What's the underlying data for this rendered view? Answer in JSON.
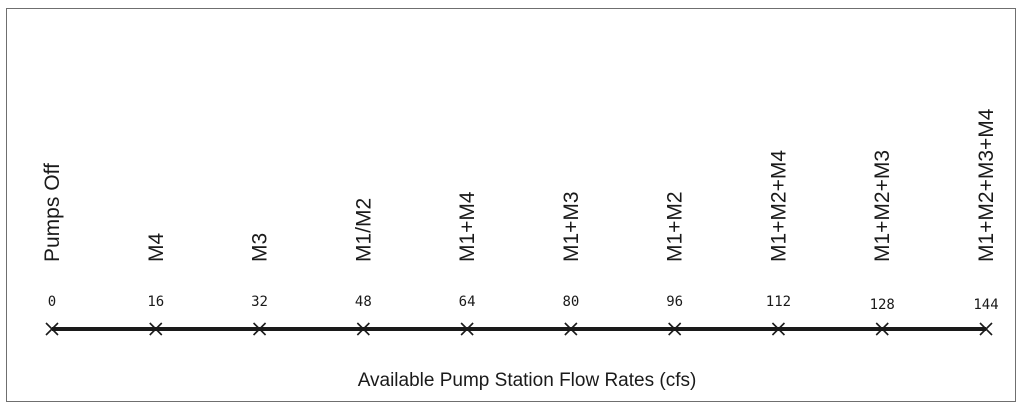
{
  "chart_data": {
    "type": "number-line",
    "title": "",
    "xlabel": "Available Pump Station Flow Rates (cfs)",
    "xlim": [
      0,
      144
    ],
    "points": [
      {
        "value": 0,
        "tick_label": "0",
        "combination": "Pumps Off"
      },
      {
        "value": 16,
        "tick_label": "16",
        "combination": "M4"
      },
      {
        "value": 32,
        "tick_label": "32",
        "combination": "M3"
      },
      {
        "value": 48,
        "tick_label": "48",
        "combination": "M1/M2"
      },
      {
        "value": 64,
        "tick_label": "64",
        "combination": "M1+M4"
      },
      {
        "value": 80,
        "tick_label": "80",
        "combination": "M1+M3"
      },
      {
        "value": 96,
        "tick_label": "96",
        "combination": "M1+M2"
      },
      {
        "value": 112,
        "tick_label": "112",
        "combination": "M1+M2+M4"
      },
      {
        "value": 128,
        "tick_label": "128",
        "combination": "M1+M2+M3"
      },
      {
        "value": 144,
        "tick_label": "144",
        "combination": "M1+M2+M3+M4"
      }
    ]
  },
  "colors": {
    "line": "#1a1a1a",
    "marker": "#1a1a1a",
    "frame": "#6f6f6f"
  },
  "marker_icon": "x-mark-icon"
}
